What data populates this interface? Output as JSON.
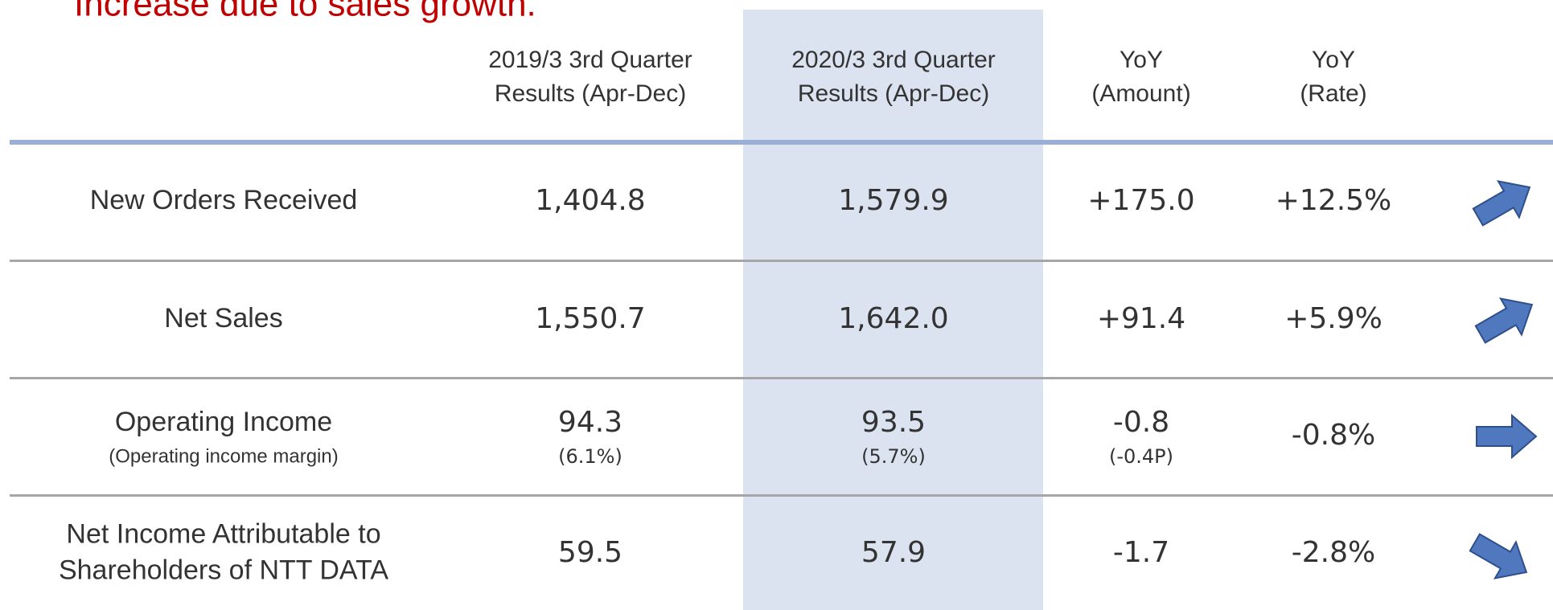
{
  "note": "Increase due to sales growth.",
  "header": {
    "columns": [
      [
        "2019/3 3rd Quarter",
        "Results (Apr-Dec)"
      ],
      [
        "2020/3 3rd Quarter",
        "Results (Apr-Dec)"
      ],
      [
        "YoY",
        "(Amount)"
      ],
      [
        "YoY",
        "(Rate)"
      ]
    ]
  },
  "rows": [
    {
      "label": [
        "New Orders Received"
      ],
      "cells": [
        {
          "value": "1,404.8"
        },
        {
          "value": "1,579.9"
        },
        {
          "value": "+175.0"
        },
        {
          "value": "+12.5%"
        }
      ]
    },
    {
      "label": [
        "Net Sales"
      ],
      "cells": [
        {
          "value": "1,550.7"
        },
        {
          "value": "1,642.0"
        },
        {
          "value": "+91.4"
        },
        {
          "value": "+5.9%"
        }
      ]
    },
    {
      "label": [
        "Operating Income"
      ],
      "sublabel": "(Operating income margin)",
      "cells": [
        {
          "value": "94.3",
          "sub": "(6.1%)"
        },
        {
          "value": "93.5",
          "sub": "(5.7%)"
        },
        {
          "value": "-0.8",
          "sub": "(-0.4P)"
        },
        {
          "value": "-0.8%"
        }
      ]
    },
    {
      "label": [
        "Net Income Attributable to",
        "Shareholders of NTT DATA"
      ],
      "cells": [
        {
          "value": "59.5"
        },
        {
          "value": "57.9"
        },
        {
          "value": "-1.7"
        },
        {
          "value": "-2.8%"
        }
      ]
    }
  ]
}
